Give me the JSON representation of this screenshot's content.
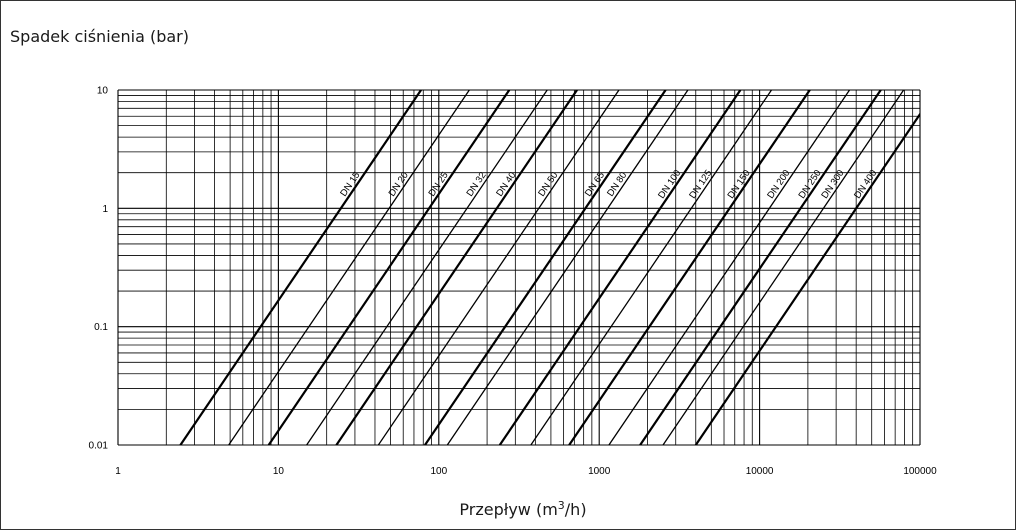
{
  "chart_data": {
    "type": "line",
    "title": "",
    "ylabel": "Spadek ciśnienia  (bar)",
    "xlabel": {
      "prefix": "Przepływ  (m",
      "sup": "3",
      "suffix": "/h)"
    },
    "xscale": "log",
    "yscale": "log",
    "xlim": [
      1,
      100000
    ],
    "ylim": [
      0.01,
      10
    ],
    "grid": true,
    "legend": "none",
    "x_ticks": [
      {
        "value": 1,
        "label": "1"
      },
      {
        "value": 10,
        "label": "10"
      },
      {
        "value": 100,
        "label": "100"
      },
      {
        "value": 1000,
        "label": "1000"
      },
      {
        "value": 10000,
        "label": "10000"
      },
      {
        "value": 100000,
        "label": "100000"
      }
    ],
    "y_ticks": [
      {
        "value": 0.01,
        "label": "0.01"
      },
      {
        "value": 0.1,
        "label": "0.1"
      },
      {
        "value": 1,
        "label": "1"
      },
      {
        "value": 10,
        "label": "10"
      }
    ],
    "series": [
      {
        "name": "DN 15",
        "points": [
          [
            2.45,
            0.01
          ],
          [
            77.5,
            10
          ]
        ]
      },
      {
        "name": "DN 20",
        "points": [
          [
            4.9,
            0.01
          ],
          [
            155,
            10
          ]
        ]
      },
      {
        "name": "DN 25",
        "points": [
          [
            8.7,
            0.01
          ],
          [
            275,
            10
          ]
        ]
      },
      {
        "name": "DN 32",
        "points": [
          [
            15,
            0.01
          ],
          [
            474,
            10
          ]
        ]
      },
      {
        "name": "DN 40",
        "points": [
          [
            23,
            0.01
          ],
          [
            727,
            10
          ]
        ]
      },
      {
        "name": "DN 50",
        "points": [
          [
            42,
            0.01
          ],
          [
            1328,
            10
          ]
        ]
      },
      {
        "name": "DN 65",
        "points": [
          [
            82,
            0.01
          ],
          [
            2593,
            10
          ]
        ]
      },
      {
        "name": "DN 80",
        "points": [
          [
            113,
            0.01
          ],
          [
            3573,
            10
          ]
        ]
      },
      {
        "name": "DN 100",
        "points": [
          [
            240,
            0.01
          ],
          [
            7590,
            10
          ]
        ]
      },
      {
        "name": "DN 125",
        "points": [
          [
            375,
            0.01
          ],
          [
            11860,
            10
          ]
        ]
      },
      {
        "name": "DN 150",
        "points": [
          [
            650,
            0.01
          ],
          [
            20550,
            10
          ]
        ]
      },
      {
        "name": "DN 200",
        "points": [
          [
            1150,
            0.01
          ],
          [
            36370,
            10
          ]
        ]
      },
      {
        "name": "DN 250",
        "points": [
          [
            1800,
            0.01
          ],
          [
            56920,
            10
          ]
        ]
      },
      {
        "name": "DN 300",
        "points": [
          [
            2500,
            0.01
          ],
          [
            79060,
            10
          ]
        ]
      },
      {
        "name": "DN 400",
        "points": [
          [
            4000,
            0.01
          ],
          [
            126500,
            10
          ]
        ]
      }
    ]
  }
}
